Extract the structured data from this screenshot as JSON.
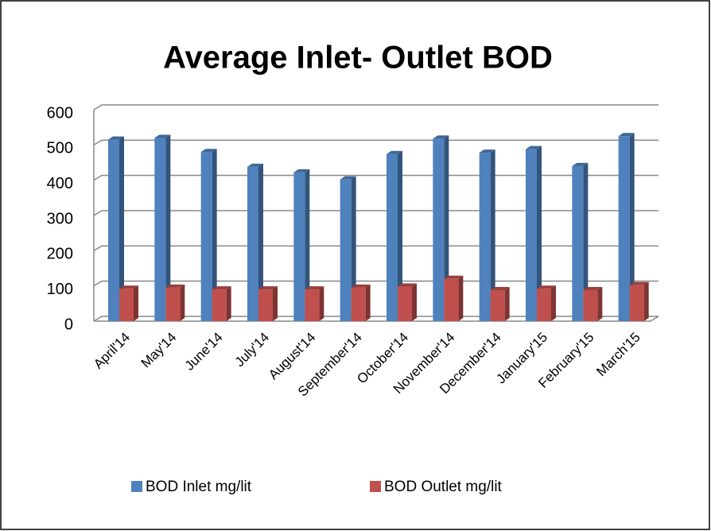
{
  "chart_data": {
    "type": "bar3d",
    "title": "Average Inlet- Outlet BOD",
    "categories": [
      "April'14",
      "May'14",
      "June'14",
      "July'14",
      "August'14",
      "September'14",
      "October'14",
      "November'14",
      "December'14",
      "January'15",
      "February'15",
      "March'15"
    ],
    "series": [
      {
        "name": "BOD Inlet mg/lit",
        "color": "#4f81bd",
        "values": [
          515,
          520,
          480,
          438,
          422,
          402,
          474,
          518,
          478,
          488,
          440,
          525
        ]
      },
      {
        "name": "BOD Outlet mg/lit",
        "color": "#c0504d",
        "values": [
          92,
          95,
          90,
          90,
          90,
          95,
          98,
          120,
          88,
          92,
          88,
          102
        ]
      }
    ],
    "ylim": [
      0,
      600
    ],
    "yticks": [
      0,
      100,
      200,
      300,
      400,
      500,
      600
    ],
    "grid": true,
    "legend": "bottom"
  }
}
